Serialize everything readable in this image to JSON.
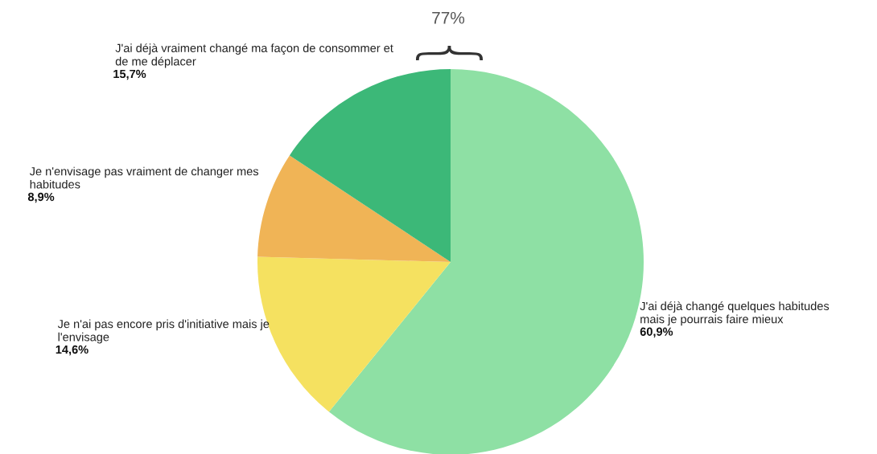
{
  "chart_data": {
    "type": "pie",
    "categories": [
      "J'ai déjà changé quelques habitudes mais je pourrais faire mieux",
      "Je n'ai pas encore pris d'initiative mais je l'envisage",
      "Je n'envisage pas vraiment de changer mes habitudes",
      "J'ai déjà vraiment changé ma façon de consommer et de me déplacer"
    ],
    "values": [
      60.9,
      14.6,
      8.9,
      15.7
    ],
    "value_labels": [
      "60,9%",
      "14,6%",
      "8,9%",
      "15,7%"
    ],
    "colors": [
      "#8ee0a4",
      "#f5e160",
      "#f0b456",
      "#3cb878"
    ],
    "annotations": [
      "77%"
    ],
    "legend": false
  }
}
